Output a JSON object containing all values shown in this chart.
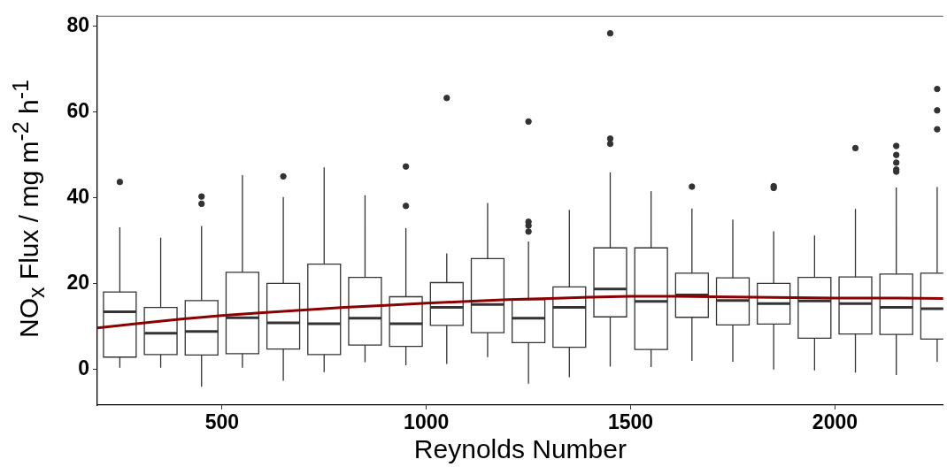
{
  "chart_data": {
    "type": "box",
    "xlabel": "Reynolds Number",
    "ylabel": "NO$_{x}$ Flux / mg m$^{-2}$ h$^{-1}$",
    "xlim": [
      195,
      2265
    ],
    "xticks": [
      500,
      1000,
      1500,
      2000
    ],
    "ylim": [
      -8.4,
      82.5
    ],
    "yticks": [
      0,
      20,
      40,
      60,
      80
    ],
    "series": [
      {
        "color": "#333333",
        "x": [
          250,
          350,
          450,
          550,
          650,
          750,
          850,
          950,
          1050,
          1150,
          1250,
          1350,
          1450,
          1550,
          1650,
          1750,
          1850,
          1950,
          2050,
          2150,
          2250
        ],
        "boxes": [
          {
            "low": 0.3,
            "q1": 2.8,
            "median": 13.4,
            "q3": 18.0,
            "high": 33.1,
            "outliers": [
              43.7
            ]
          },
          {
            "low": 0.3,
            "q1": 3.4,
            "median": 8.4,
            "q3": 14.4,
            "high": 30.7
          },
          {
            "low": -4.1,
            "q1": 3.3,
            "median": 8.8,
            "q3": 16.0,
            "high": 33.4,
            "outliers": [
              40.3,
              38.6
            ]
          },
          {
            "low": 0.3,
            "q1": 3.6,
            "median": 12.0,
            "q3": 22.6,
            "high": 45.3
          },
          {
            "low": -2.7,
            "q1": 4.7,
            "median": 10.8,
            "q3": 20.0,
            "high": 40.2,
            "outliers": [
              45.0
            ]
          },
          {
            "low": -0.7,
            "q1": 3.4,
            "median": 10.6,
            "q3": 24.5,
            "high": 47.1
          },
          {
            "low": 1.6,
            "q1": 5.6,
            "median": 11.9,
            "q3": 21.4,
            "high": 40.6
          },
          {
            "low": 0.9,
            "q1": 5.3,
            "median": 10.6,
            "q3": 16.9,
            "high": 32.9,
            "outliers": [
              47.3,
              38.1
            ]
          },
          {
            "low": 1.2,
            "q1": 10.2,
            "median": 14.4,
            "q3": 20.2,
            "high": 27.0,
            "outliers": [
              63.3
            ]
          },
          {
            "low": 2.8,
            "q1": 8.5,
            "median": 15.1,
            "q3": 25.8,
            "high": 38.8
          },
          {
            "low": -3.4,
            "q1": 6.2,
            "median": 11.9,
            "q3": 16.2,
            "high": 29.8,
            "outliers": [
              57.8,
              34.4,
              33.5,
              32.1
            ]
          },
          {
            "low": -1.9,
            "q1": 5.1,
            "median": 14.4,
            "q3": 19.2,
            "high": 37.2
          },
          {
            "low": 0.6,
            "q1": 12.2,
            "median": 18.7,
            "q3": 28.3,
            "high": 45.9,
            "outliers": [
              78.4,
              53.8,
              52.6
            ]
          },
          {
            "low": 0.5,
            "q1": 4.6,
            "median": 15.8,
            "q3": 28.3,
            "high": 41.5
          },
          {
            "low": 1.9,
            "q1": 12.1,
            "median": 17.3,
            "q3": 22.4,
            "high": 37.5,
            "outliers": [
              42.6
            ]
          },
          {
            "low": 1.7,
            "q1": 10.3,
            "median": 16.0,
            "q3": 21.3,
            "high": 34.9
          },
          {
            "low": -0.1,
            "q1": 10.5,
            "median": 15.3,
            "q3": 20.0,
            "high": 32.2,
            "outliers": [
              42.7,
              42.3
            ]
          },
          {
            "low": -0.3,
            "q1": 7.2,
            "median": 15.9,
            "q3": 21.4,
            "high": 31.2
          },
          {
            "low": -0.8,
            "q1": 8.2,
            "median": 15.3,
            "q3": 21.5,
            "high": 37.4,
            "outliers": [
              51.6
            ]
          },
          {
            "low": -1.4,
            "q1": 8.1,
            "median": 14.4,
            "q3": 22.2,
            "high": 42.4,
            "outliers": [
              52.1,
              50.0,
              48.2,
              46.6,
              46.1
            ]
          },
          {
            "low": 1.7,
            "q1": 7.0,
            "median": 14.1,
            "q3": 22.4,
            "high": 42.5,
            "outliers": [
              65.4,
              60.4,
              56.0
            ]
          }
        ]
      },
      {
        "type": "line",
        "color": "#8b0000",
        "x": [
          195,
          300,
          400,
          500,
          600,
          700,
          800,
          900,
          1000,
          1100,
          1200,
          1300,
          1400,
          1500,
          1600,
          1700,
          1800,
          1900,
          2000,
          2100,
          2265
        ],
        "values": [
          9.6,
          10.7,
          11.7,
          12.5,
          13.2,
          13.8,
          14.4,
          14.9,
          15.4,
          15.8,
          16.2,
          16.5,
          16.8,
          17.0,
          17.0,
          16.9,
          16.8,
          16.7,
          16.6,
          16.6,
          16.5
        ]
      }
    ]
  }
}
